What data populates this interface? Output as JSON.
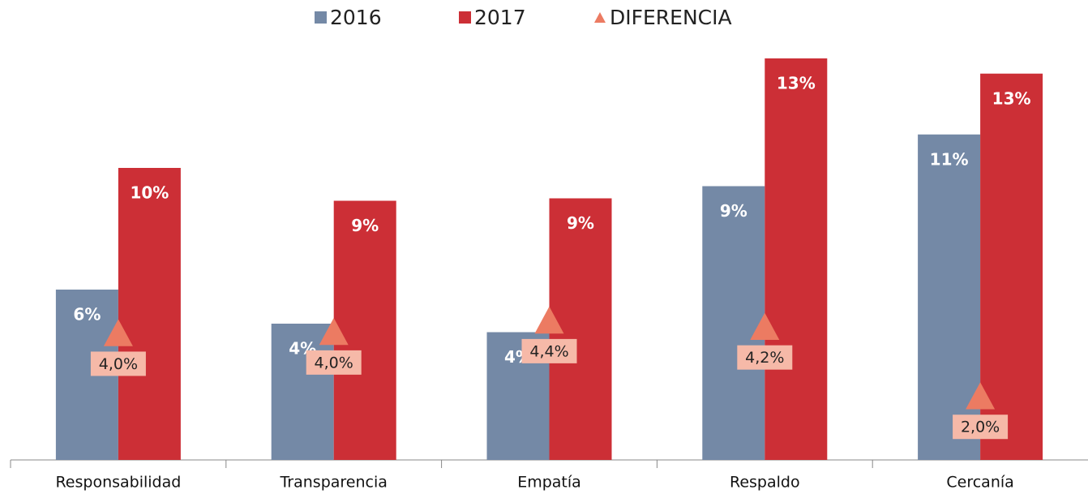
{
  "chart_data": {
    "type": "bar",
    "categories": [
      "Responsabilidad",
      "Transparencia",
      "Empatía",
      "Respaldo",
      "Cercanía"
    ],
    "series": [
      {
        "name": "2016",
        "color": "#7489a6",
        "values": [
          5.6,
          4.48,
          4.2,
          9.0,
          10.7
        ],
        "value_labels": [
          "6%",
          "4%",
          "4%",
          "9%",
          "11%"
        ]
      },
      {
        "name": "2017",
        "color": "#cc2f36",
        "values": [
          9.6,
          8.52,
          8.6,
          13.2,
          12.7
        ],
        "value_labels": [
          "10%",
          "9%",
          "9%",
          "13%",
          "13%"
        ]
      },
      {
        "name": "DIFERENCIA",
        "color": "#ec7b62",
        "type": "marker",
        "axis": "y2",
        "values": [
          4.0,
          4.04,
          4.4,
          4.2,
          2.0
        ],
        "value_labels": [
          "4,0%",
          "4,0%",
          "4,4%",
          "4,2%",
          "2,0%"
        ]
      }
    ],
    "ylim": [
      0,
      14
    ],
    "y2lim": [
      0,
      13.5
    ],
    "legend": "top"
  }
}
